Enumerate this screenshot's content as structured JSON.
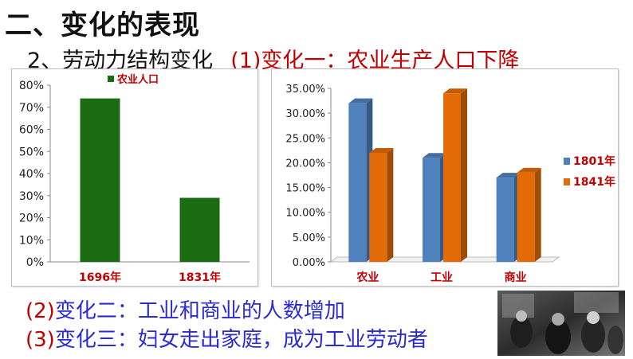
{
  "heading": "二、变化的表现",
  "subheading": {
    "prefix": "2、劳动力结构变化",
    "highlight": "(1)变化一：农业生产人口下降"
  },
  "chart_data": [
    {
      "type": "bar",
      "title": "",
      "categories": [
        "1696年",
        "1831年"
      ],
      "series": [
        {
          "name": "农业人口",
          "values": [
            74,
            29
          ]
        }
      ],
      "ylim": [
        0,
        80
      ],
      "yticks": [
        "0%",
        "10%",
        "20%",
        "30%",
        "40%",
        "50%",
        "60%",
        "70%",
        "80%"
      ],
      "ylabel": "",
      "xlabel": "",
      "grid": false,
      "legend": "top",
      "colors": [
        "#1a6b12"
      ]
    },
    {
      "type": "bar",
      "title": "",
      "categories": [
        "农业",
        "工业",
        "商业"
      ],
      "series": [
        {
          "name": "1801年",
          "values": [
            32,
            21,
            17
          ]
        },
        {
          "name": "1841年",
          "values": [
            22,
            34,
            18
          ]
        }
      ],
      "ylim": [
        0,
        35
      ],
      "yticks": [
        "0.00%",
        "5.00%",
        "10.00%",
        "15.00%",
        "20.00%",
        "25.00%",
        "30.00%",
        "35.00%"
      ],
      "ylabel": "",
      "xlabel": "",
      "grid": false,
      "legend": "right",
      "colors": [
        "#4f81bd",
        "#e36c09"
      ]
    }
  ],
  "lines": [
    {
      "num": "(2)",
      "text": "变化二：工业和商业的人数增加"
    },
    {
      "num": "(3)",
      "text": "变化三：妇女走出家庭，成为工业劳动者"
    }
  ],
  "photo": {
    "label": "historical-photo"
  }
}
